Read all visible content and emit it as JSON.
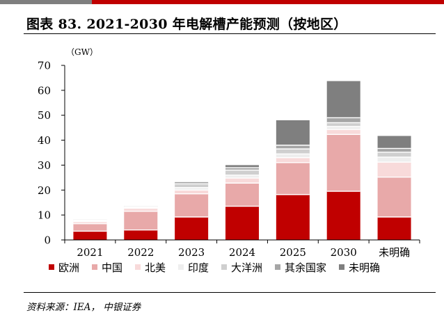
{
  "title": "图表 83. 2021-2030 年电解槽产能预测（按地区）",
  "source": "资料来源：IEA， 中银证券",
  "colors": {
    "topbar_dark": "#7f7f7f",
    "topbar_red": "#c00000"
  },
  "chart_data": {
    "type": "bar",
    "stacked": true,
    "unit_label": "（GW）",
    "ylim": [
      0,
      70
    ],
    "yticks": [
      "0",
      "10",
      "20",
      "30",
      "40",
      "50",
      "60",
      "70"
    ],
    "categories": [
      "2021",
      "2022",
      "2023",
      "2024",
      "2025",
      "2030",
      "未明确"
    ],
    "legend_position": "bottom",
    "series": [
      {
        "name": "欧洲",
        "color": "#c00000",
        "values": [
          3.5,
          4.0,
          9.2,
          13.5,
          18.2,
          19.5,
          9.2
        ]
      },
      {
        "name": "中国",
        "color": "#e8a9a9",
        "values": [
          3.0,
          7.5,
          9.3,
          9.3,
          12.8,
          22.8,
          16.0
        ]
      },
      {
        "name": "北美",
        "color": "#f8dada",
        "values": [
          0.8,
          1.2,
          1.5,
          2.0,
          2.0,
          2.0,
          6.0
        ]
      },
      {
        "name": "印度",
        "color": "#eeeeee",
        "values": [
          0.4,
          0.4,
          1.0,
          1.2,
          1.5,
          1.2,
          2.0
        ]
      },
      {
        "name": "大洋洲",
        "color": "#cfcfcf",
        "values": [
          0.3,
          0.3,
          1.5,
          2.0,
          2.0,
          1.5,
          2.0
        ]
      },
      {
        "name": "其余国家",
        "color": "#a6a6a6",
        "values": [
          0.2,
          0.2,
          0.7,
          1.0,
          1.5,
          2.0,
          1.5
        ]
      },
      {
        "name": "未明确",
        "color": "#7f7f7f",
        "values": [
          0.0,
          0.0,
          0.0,
          1.0,
          10.0,
          14.7,
          5.0
        ]
      }
    ]
  }
}
